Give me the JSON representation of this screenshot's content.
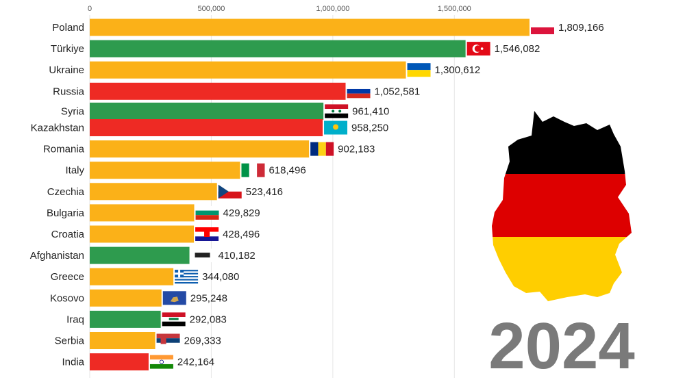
{
  "chart_data": {
    "type": "bar",
    "orientation": "horizontal",
    "title": "",
    "xlabel": "",
    "ylabel": "",
    "xlim": [
      0,
      1809166
    ],
    "xticks": [
      0,
      500000,
      1000000,
      1500000
    ],
    "xtick_labels": [
      "0",
      "500,000",
      "1,000,000",
      "1,500,000"
    ],
    "grid": true,
    "year_label": "2024",
    "categories": [
      "Poland",
      "Türkiye",
      "Ukraine",
      "Russia",
      "Syria",
      "Kazakhstan",
      "Romania",
      "Italy",
      "Czechia",
      "Bulgaria",
      "Croatia",
      "Afghanistan",
      "Greece",
      "Kosovo",
      "Iraq",
      "Serbia",
      "India"
    ],
    "values": [
      1809166,
      1546082,
      1300612,
      1052581,
      961410,
      958250,
      902183,
      618496,
      523416,
      429829,
      428496,
      410182,
      344080,
      295248,
      292083,
      269333,
      242164
    ],
    "value_labels": [
      "1,809,166",
      "1,546,082",
      "1,300,612",
      "1,052,581",
      "961,410",
      "958,250",
      "902,183",
      "618,496",
      "523,416",
      "429,829",
      "428,496",
      "410,182",
      "344,080",
      "295,248",
      "292,083",
      "269,333",
      "242,164"
    ],
    "bar_colors": [
      "#FBB118",
      "#2E9B4E",
      "#FBB118",
      "#EE2A24",
      "#2E9B4E",
      "#EE2A24",
      "#FBB118",
      "#FBB118",
      "#FBB118",
      "#FBB118",
      "#FBB118",
      "#2E9B4E",
      "#FBB118",
      "#FBB118",
      "#2E9B4E",
      "#FBB118",
      "#EE2A24"
    ],
    "flags": [
      "poland",
      "turkey",
      "ukraine",
      "russia",
      "syria",
      "kazakhstan",
      "romania",
      "italy",
      "czechia",
      "bulgaria",
      "croatia",
      "afghanistan",
      "greece",
      "kosovo",
      "iraq",
      "serbia",
      "india"
    ]
  },
  "decor": {
    "map": "germany-map-flag-colors",
    "flag_colors": [
      "#000000",
      "#DD0000",
      "#FFCE00"
    ]
  }
}
